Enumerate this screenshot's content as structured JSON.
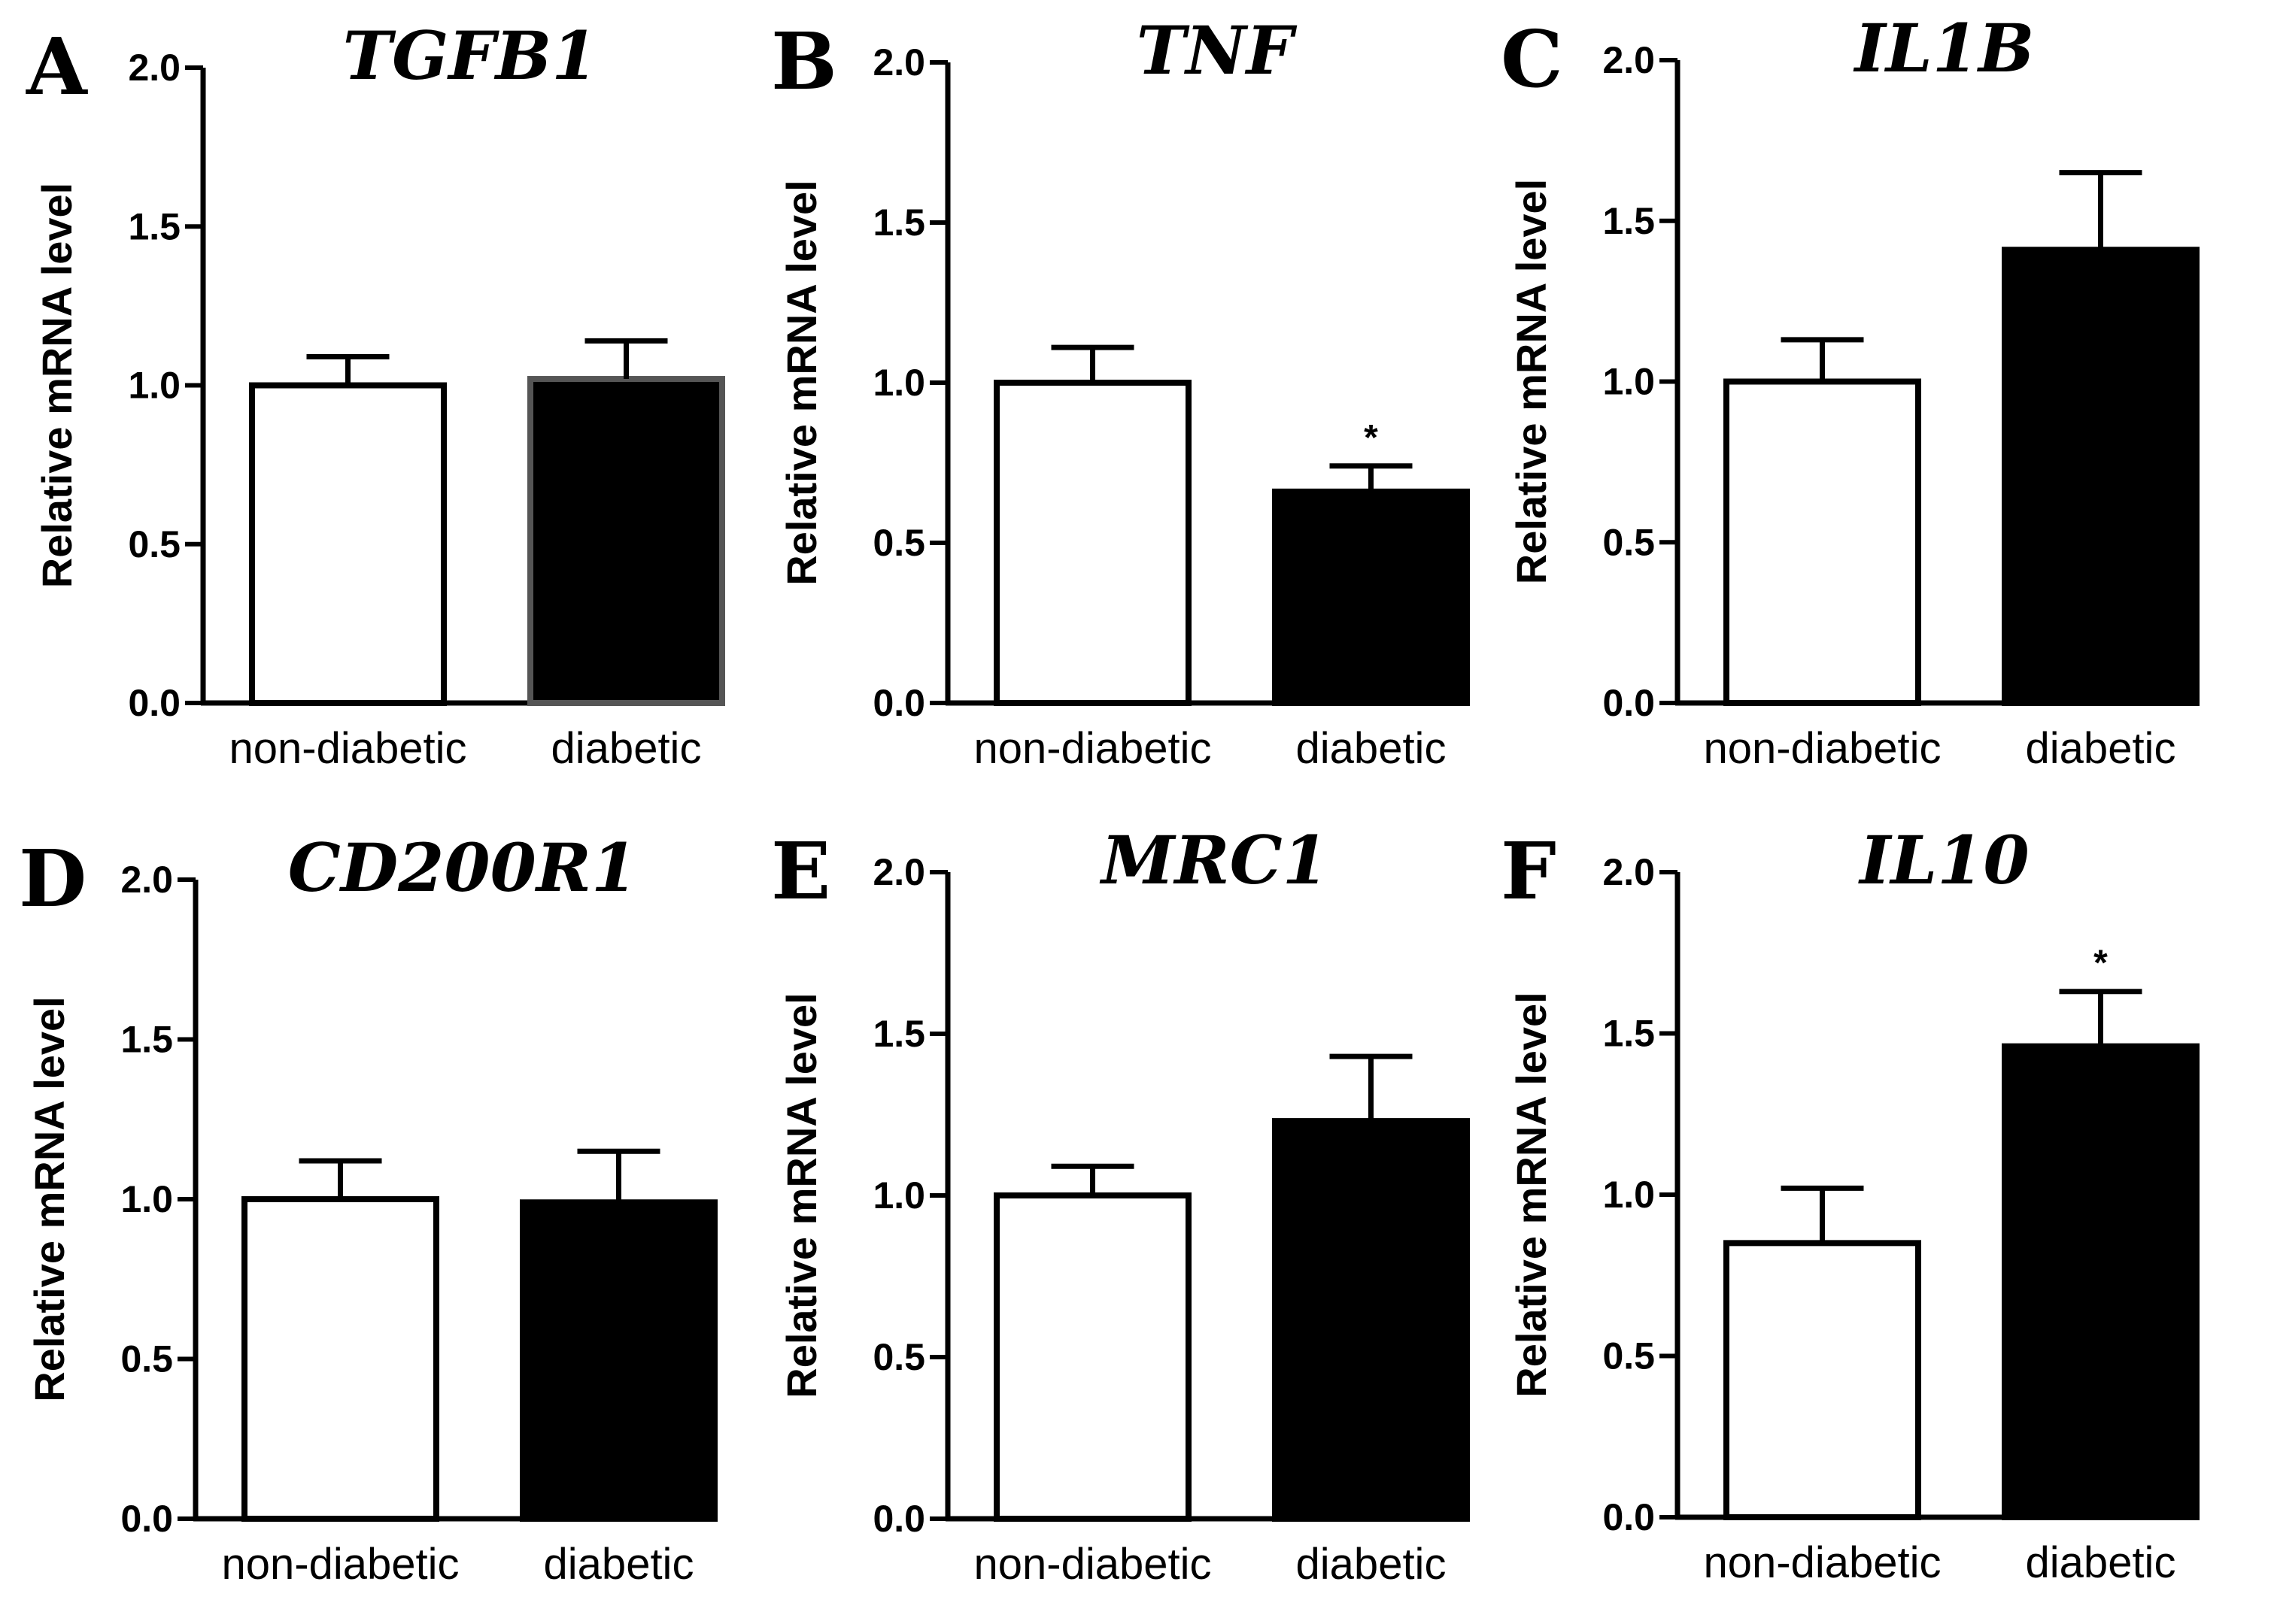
{
  "chart_data": [
    {
      "panel": "A",
      "type": "bar",
      "title": "TGFB1",
      "ylabel": "Relative mRNA level",
      "ylim": [
        0,
        2.0
      ],
      "yticks": [
        "0.0",
        "0.5",
        "1.0",
        "1.5",
        "2.0"
      ],
      "categories": [
        "non-diabetic",
        "diabetic"
      ],
      "values": [
        1.0,
        1.02
      ],
      "errors": [
        0.09,
        0.12
      ],
      "fills": [
        "#ffffff",
        "#000000"
      ],
      "outlines": [
        "#000000",
        "#555555"
      ],
      "significance": [
        "",
        ""
      ]
    },
    {
      "panel": "B",
      "type": "bar",
      "title": "TNF",
      "ylabel": "Relative mRNA level",
      "ylim": [
        0,
        2.0
      ],
      "yticks": [
        "0.0",
        "0.5",
        "1.0",
        "1.5",
        "2.0"
      ],
      "categories": [
        "non-diabetic",
        "diabetic"
      ],
      "values": [
        1.0,
        0.66
      ],
      "errors": [
        0.11,
        0.08
      ],
      "fills": [
        "#ffffff",
        "#000000"
      ],
      "outlines": [
        "#000000",
        "#000000"
      ],
      "significance": [
        "",
        "*"
      ]
    },
    {
      "panel": "C",
      "type": "bar",
      "title": "IL1B",
      "ylabel": "Relative mRNA level",
      "ylim": [
        0,
        2.0
      ],
      "yticks": [
        "0.0",
        "0.5",
        "1.0",
        "1.5",
        "2.0"
      ],
      "categories": [
        "non-diabetic",
        "diabetic"
      ],
      "values": [
        1.0,
        1.41
      ],
      "errors": [
        0.13,
        0.24
      ],
      "fills": [
        "#ffffff",
        "#000000"
      ],
      "outlines": [
        "#000000",
        "#000000"
      ],
      "significance": [
        "",
        ""
      ]
    },
    {
      "panel": "D",
      "type": "bar",
      "title": "CD200R1",
      "ylabel": "Relative mRNA level",
      "ylim": [
        0,
        2.0
      ],
      "yticks": [
        "0.0",
        "0.5",
        "1.0",
        "1.5",
        "2.0"
      ],
      "categories": [
        "non-diabetic",
        "diabetic"
      ],
      "values": [
        1.0,
        0.99
      ],
      "errors": [
        0.12,
        0.16
      ],
      "fills": [
        "#ffffff",
        "#000000"
      ],
      "outlines": [
        "#000000",
        "#000000"
      ],
      "significance": [
        "",
        ""
      ]
    },
    {
      "panel": "E",
      "type": "bar",
      "title": "MRC1",
      "ylabel": "Relative mRNA level",
      "ylim": [
        0,
        2.0
      ],
      "yticks": [
        "0.0",
        "0.5",
        "1.0",
        "1.5",
        "2.0"
      ],
      "categories": [
        "non-diabetic",
        "diabetic"
      ],
      "values": [
        1.0,
        1.23
      ],
      "errors": [
        0.09,
        0.2
      ],
      "fills": [
        "#ffffff",
        "#000000"
      ],
      "outlines": [
        "#000000",
        "#000000"
      ],
      "significance": [
        "",
        ""
      ]
    },
    {
      "panel": "F",
      "type": "bar",
      "title": "IL10",
      "ylabel": "Relative mRNA level",
      "ylim": [
        0,
        2.0
      ],
      "yticks": [
        "0.0",
        "0.5",
        "1.0",
        "1.5",
        "2.0"
      ],
      "categories": [
        "non-diabetic",
        "diabetic"
      ],
      "values": [
        0.85,
        1.46
      ],
      "errors": [
        0.17,
        0.17
      ],
      "fills": [
        "#ffffff",
        "#000000"
      ],
      "outlines": [
        "#000000",
        "#000000"
      ],
      "significance": [
        "",
        "*"
      ]
    }
  ]
}
